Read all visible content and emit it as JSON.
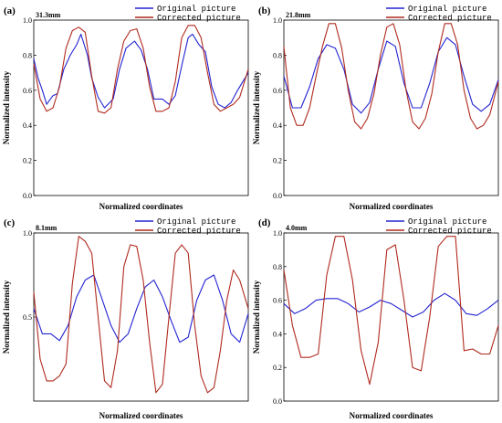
{
  "figure": {
    "colors": {
      "original": "#2323d2",
      "corrected": "#b02a1e"
    },
    "legend": [
      "Original picture",
      "Corrected picture"
    ],
    "xlabel": "Normalized coordinates",
    "ylabel": "Normalized intensity"
  },
  "chart_data": [
    {
      "type": "line",
      "panel": "(a)",
      "distance_label": "31.3mm",
      "xlabel": "Normalized coordinates",
      "ylabel": "Normalized intensity",
      "ylim": [
        0,
        1
      ],
      "yticks": [
        0.0,
        0.2,
        0.4,
        0.6,
        0.8,
        1.0
      ],
      "yticklabels": [
        "0.0",
        "0.2",
        "0.4",
        "0.6",
        "0.8",
        "1.0"
      ],
      "legend": [
        "Original picture",
        "Corrected picture"
      ],
      "series": [
        {
          "name": "Original picture",
          "x": [
            0.0,
            0.02,
            0.04,
            0.06,
            0.09,
            0.11,
            0.14,
            0.17,
            0.2,
            0.22,
            0.25,
            0.27,
            0.3,
            0.33,
            0.37,
            0.4,
            0.43,
            0.47,
            0.5,
            0.53,
            0.56,
            0.6,
            0.63,
            0.66,
            0.69,
            0.72,
            0.74,
            0.77,
            0.8,
            0.83,
            0.86,
            0.89,
            0.92,
            0.95,
            0.98,
            1.0
          ],
          "y": [
            0.78,
            0.67,
            0.6,
            0.52,
            0.57,
            0.58,
            0.72,
            0.8,
            0.86,
            0.92,
            0.8,
            0.67,
            0.56,
            0.5,
            0.55,
            0.72,
            0.84,
            0.88,
            0.83,
            0.72,
            0.55,
            0.55,
            0.52,
            0.57,
            0.74,
            0.9,
            0.92,
            0.86,
            0.82,
            0.62,
            0.52,
            0.5,
            0.53,
            0.6,
            0.66,
            0.7
          ]
        },
        {
          "name": "Corrected picture",
          "x": [
            0.0,
            0.03,
            0.06,
            0.09,
            0.12,
            0.15,
            0.18,
            0.21,
            0.24,
            0.27,
            0.3,
            0.33,
            0.36,
            0.39,
            0.42,
            0.45,
            0.48,
            0.51,
            0.54,
            0.57,
            0.6,
            0.63,
            0.66,
            0.69,
            0.72,
            0.75,
            0.78,
            0.81,
            0.84,
            0.87,
            0.9,
            0.93,
            0.96,
            1.0
          ],
          "y": [
            0.75,
            0.55,
            0.48,
            0.5,
            0.62,
            0.84,
            0.94,
            0.96,
            0.93,
            0.68,
            0.48,
            0.47,
            0.5,
            0.72,
            0.88,
            0.94,
            0.95,
            0.84,
            0.62,
            0.48,
            0.48,
            0.5,
            0.65,
            0.9,
            0.97,
            0.97,
            0.9,
            0.7,
            0.52,
            0.48,
            0.5,
            0.52,
            0.56,
            0.72
          ]
        }
      ]
    },
    {
      "type": "line",
      "panel": "(b)",
      "distance_label": "21.8mm",
      "xlabel": "Normalized coordinates",
      "ylabel": "Normalized intensity",
      "ylim": [
        0,
        1
      ],
      "yticks": [
        0.0,
        0.2,
        0.4,
        0.6,
        0.8,
        1.0
      ],
      "yticklabels": [
        "0.0",
        "0.2",
        "0.4",
        "0.6",
        "0.8",
        "1.0"
      ],
      "legend": [
        "Original picture",
        "Corrected picture"
      ],
      "series": [
        {
          "name": "Original picture",
          "x": [
            0.0,
            0.04,
            0.08,
            0.12,
            0.16,
            0.2,
            0.24,
            0.28,
            0.32,
            0.36,
            0.4,
            0.44,
            0.48,
            0.52,
            0.56,
            0.6,
            0.64,
            0.68,
            0.72,
            0.76,
            0.8,
            0.84,
            0.88,
            0.92,
            0.96,
            1.0
          ],
          "y": [
            0.68,
            0.5,
            0.5,
            0.62,
            0.78,
            0.86,
            0.84,
            0.72,
            0.52,
            0.47,
            0.53,
            0.72,
            0.88,
            0.85,
            0.64,
            0.5,
            0.5,
            0.64,
            0.82,
            0.9,
            0.86,
            0.68,
            0.52,
            0.48,
            0.52,
            0.66
          ]
        },
        {
          "name": "Corrected picture",
          "x": [
            0.0,
            0.03,
            0.06,
            0.09,
            0.12,
            0.15,
            0.18,
            0.21,
            0.24,
            0.27,
            0.3,
            0.33,
            0.36,
            0.39,
            0.42,
            0.45,
            0.48,
            0.51,
            0.54,
            0.57,
            0.6,
            0.63,
            0.66,
            0.69,
            0.72,
            0.75,
            0.78,
            0.81,
            0.84,
            0.87,
            0.9,
            0.93,
            0.96,
            1.0
          ],
          "y": [
            0.85,
            0.5,
            0.4,
            0.4,
            0.5,
            0.68,
            0.85,
            0.98,
            0.98,
            0.84,
            0.6,
            0.42,
            0.38,
            0.44,
            0.58,
            0.8,
            0.96,
            0.98,
            0.86,
            0.6,
            0.42,
            0.38,
            0.44,
            0.58,
            0.82,
            0.98,
            0.98,
            0.86,
            0.6,
            0.44,
            0.38,
            0.4,
            0.46,
            0.65
          ]
        }
      ]
    },
    {
      "type": "line",
      "panel": "(c)",
      "distance_label": "8.1mm",
      "xlabel": "Normalized coordinates",
      "ylabel": "Normalized intensity",
      "ylim": [
        0,
        1
      ],
      "yticks": [
        0.5,
        1.0
      ],
      "yticklabels": [
        "0.5",
        "1.0"
      ],
      "legend": [
        "Original picture",
        "Corrected picture"
      ],
      "series": [
        {
          "name": "Original picture",
          "x": [
            0.0,
            0.04,
            0.08,
            0.12,
            0.16,
            0.2,
            0.24,
            0.28,
            0.32,
            0.36,
            0.4,
            0.44,
            0.48,
            0.52,
            0.56,
            0.6,
            0.64,
            0.68,
            0.72,
            0.76,
            0.8,
            0.84,
            0.88,
            0.92,
            0.96,
            1.0
          ],
          "y": [
            0.55,
            0.4,
            0.4,
            0.36,
            0.45,
            0.62,
            0.72,
            0.75,
            0.6,
            0.45,
            0.35,
            0.4,
            0.55,
            0.68,
            0.72,
            0.62,
            0.48,
            0.35,
            0.38,
            0.6,
            0.72,
            0.75,
            0.6,
            0.4,
            0.35,
            0.52
          ]
        },
        {
          "name": "Corrected picture",
          "x": [
            0.0,
            0.03,
            0.06,
            0.09,
            0.12,
            0.15,
            0.18,
            0.21,
            0.24,
            0.27,
            0.3,
            0.33,
            0.36,
            0.39,
            0.42,
            0.45,
            0.48,
            0.51,
            0.54,
            0.57,
            0.6,
            0.63,
            0.66,
            0.69,
            0.72,
            0.75,
            0.78,
            0.81,
            0.84,
            0.87,
            0.9,
            0.93,
            0.96,
            1.0
          ],
          "y": [
            0.65,
            0.25,
            0.12,
            0.12,
            0.15,
            0.22,
            0.7,
            0.98,
            0.95,
            0.88,
            0.5,
            0.12,
            0.08,
            0.3,
            0.8,
            0.93,
            0.92,
            0.72,
            0.35,
            0.05,
            0.1,
            0.5,
            0.88,
            0.93,
            0.88,
            0.45,
            0.15,
            0.05,
            0.08,
            0.3,
            0.6,
            0.78,
            0.72,
            0.55
          ]
        }
      ]
    },
    {
      "type": "line",
      "panel": "(d)",
      "distance_label": "4.0mm",
      "xlabel": "Normalized coordinates",
      "ylabel": "Normalized intensity",
      "ylim": [
        0,
        1
      ],
      "yticks": [
        0.0,
        0.2,
        0.4,
        0.6,
        0.8,
        1.0
      ],
      "yticklabels": [
        "0.0",
        "0.2",
        "0.4",
        "0.6",
        "0.8",
        "1.0"
      ],
      "legend": [
        "Original picture",
        "Corrected picture"
      ],
      "series": [
        {
          "name": "Original picture",
          "x": [
            0.0,
            0.05,
            0.1,
            0.15,
            0.2,
            0.25,
            0.3,
            0.35,
            0.4,
            0.45,
            0.5,
            0.55,
            0.6,
            0.65,
            0.7,
            0.75,
            0.8,
            0.85,
            0.9,
            0.95,
            1.0
          ],
          "y": [
            0.58,
            0.52,
            0.55,
            0.6,
            0.61,
            0.61,
            0.58,
            0.53,
            0.56,
            0.6,
            0.58,
            0.54,
            0.5,
            0.53,
            0.6,
            0.64,
            0.6,
            0.52,
            0.51,
            0.55,
            0.6
          ]
        },
        {
          "name": "Corrected picture",
          "x": [
            0.0,
            0.04,
            0.08,
            0.12,
            0.16,
            0.2,
            0.24,
            0.28,
            0.32,
            0.36,
            0.4,
            0.44,
            0.48,
            0.52,
            0.56,
            0.6,
            0.64,
            0.68,
            0.72,
            0.76,
            0.8,
            0.84,
            0.88,
            0.92,
            0.96,
            1.0
          ],
          "y": [
            0.78,
            0.45,
            0.26,
            0.26,
            0.28,
            0.75,
            0.98,
            0.98,
            0.72,
            0.3,
            0.1,
            0.35,
            0.9,
            0.93,
            0.6,
            0.2,
            0.18,
            0.5,
            0.92,
            0.98,
            0.98,
            0.3,
            0.31,
            0.28,
            0.28,
            0.45
          ]
        }
      ]
    }
  ]
}
